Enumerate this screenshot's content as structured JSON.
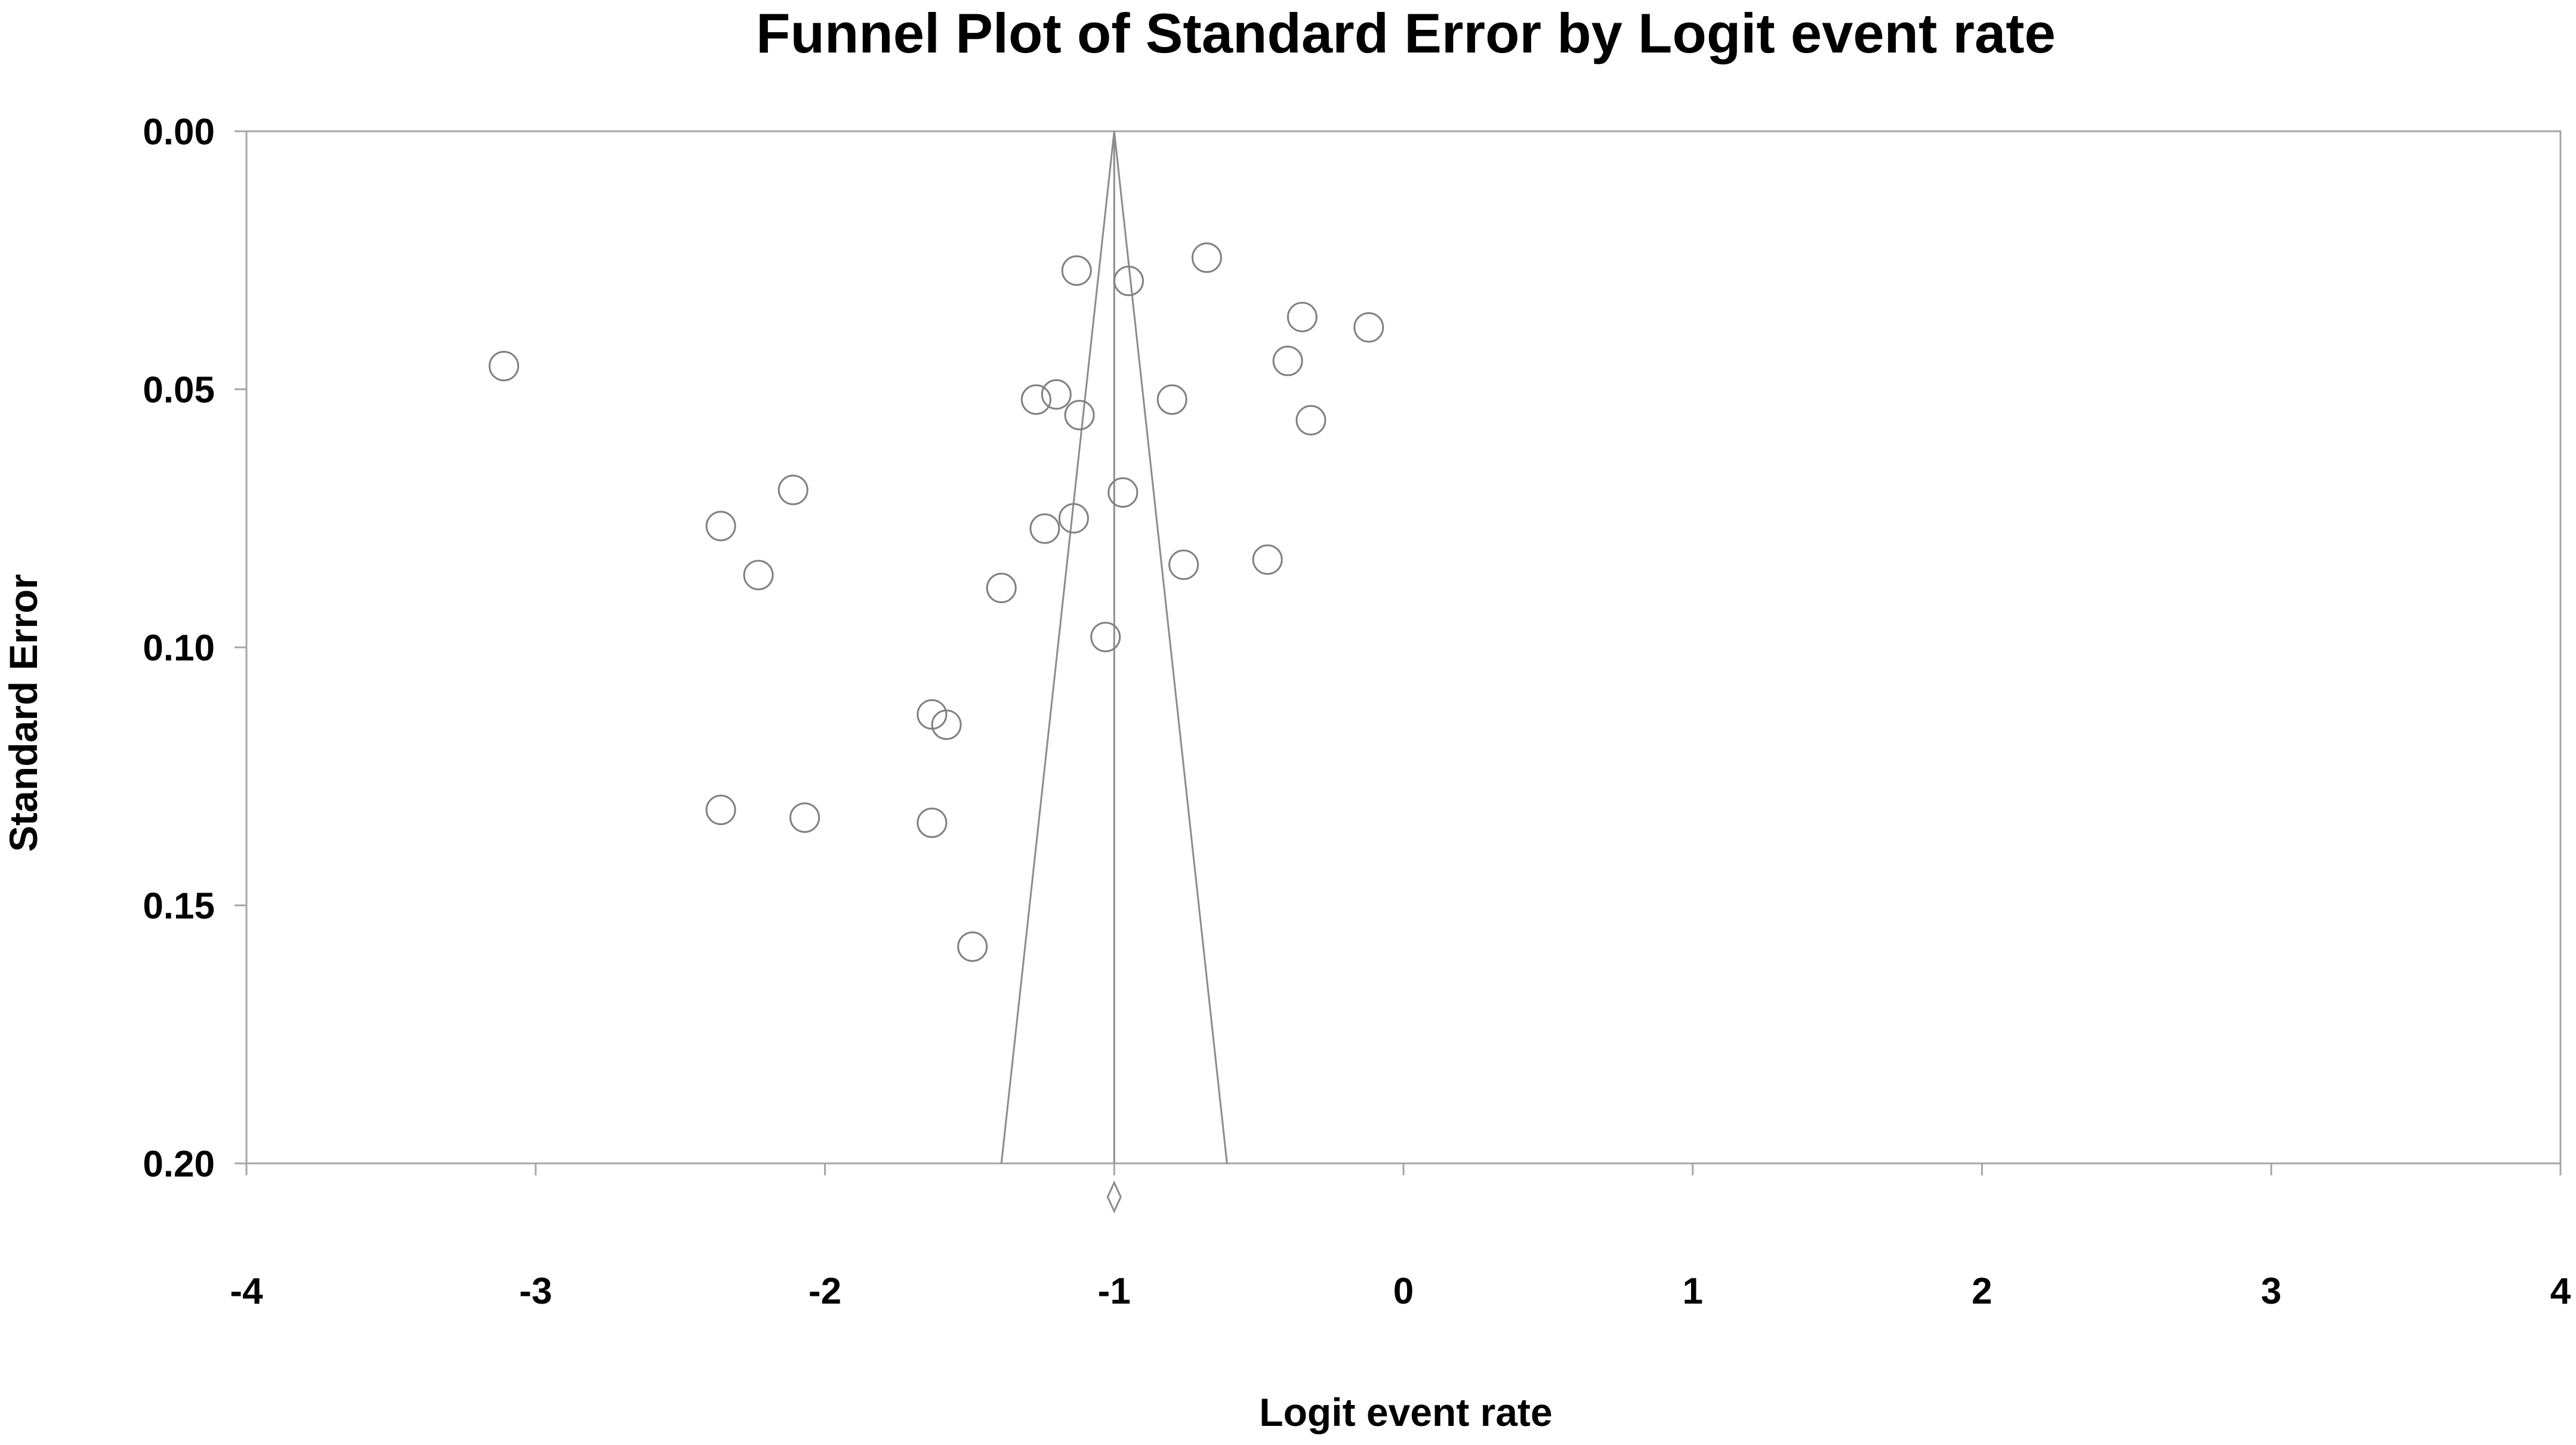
{
  "chart_data": {
    "type": "scatter",
    "title": "Funnel Plot of Standard Error by Logit event rate",
    "xlabel": "Logit event rate",
    "ylabel": "Standard Error",
    "xlim": [
      -4,
      4
    ],
    "ylim": [
      0.2,
      0.0
    ],
    "y_axis_inverted": true,
    "grid": false,
    "x_ticks": [
      -4,
      -3,
      -2,
      -1,
      0,
      1,
      2,
      3,
      4
    ],
    "x_tick_labels": [
      "-4",
      "-3",
      "-2",
      "-1",
      "0",
      "1",
      "2",
      "3",
      "4"
    ],
    "y_ticks": [
      0.0,
      0.05,
      0.1,
      0.15,
      0.2
    ],
    "y_tick_labels": [
      "0.00",
      "0.05",
      "0.10",
      "0.15",
      "0.20"
    ],
    "summary_estimate": -1.0,
    "funnel": {
      "apex": [
        -1.0,
        0.0
      ],
      "base_left": [
        -1.39,
        0.2
      ],
      "base_right": [
        -0.61,
        0.2
      ]
    },
    "summary_diamond": {
      "x": -1.0,
      "y": 0.2065
    },
    "colors": {
      "markers": "#7f7f7f",
      "funnel": "#8c8c8c",
      "frame": "#a6a6a6",
      "text": "#000000"
    },
    "points": [
      {
        "x": -3.11,
        "y": 0.0455
      },
      {
        "x": -1.13,
        "y": 0.027
      },
      {
        "x": -0.95,
        "y": 0.029
      },
      {
        "x": -0.68,
        "y": 0.0245
      },
      {
        "x": -0.35,
        "y": 0.036
      },
      {
        "x": -0.12,
        "y": 0.038
      },
      {
        "x": -0.4,
        "y": 0.0445
      },
      {
        "x": -1.27,
        "y": 0.052
      },
      {
        "x": -1.2,
        "y": 0.051
      },
      {
        "x": -1.12,
        "y": 0.055
      },
      {
        "x": -0.8,
        "y": 0.052
      },
      {
        "x": -0.32,
        "y": 0.056
      },
      {
        "x": -2.11,
        "y": 0.0695
      },
      {
        "x": -2.36,
        "y": 0.0765
      },
      {
        "x": -1.24,
        "y": 0.077
      },
      {
        "x": -1.14,
        "y": 0.075
      },
      {
        "x": -0.97,
        "y": 0.07
      },
      {
        "x": -2.23,
        "y": 0.086
      },
      {
        "x": -1.39,
        "y": 0.0885
      },
      {
        "x": -0.76,
        "y": 0.084
      },
      {
        "x": -0.47,
        "y": 0.083
      },
      {
        "x": -1.03,
        "y": 0.098
      },
      {
        "x": -1.63,
        "y": 0.113
      },
      {
        "x": -1.58,
        "y": 0.115
      },
      {
        "x": -2.36,
        "y": 0.1315
      },
      {
        "x": -2.07,
        "y": 0.133
      },
      {
        "x": -1.63,
        "y": 0.134
      },
      {
        "x": -1.49,
        "y": 0.158
      }
    ]
  }
}
